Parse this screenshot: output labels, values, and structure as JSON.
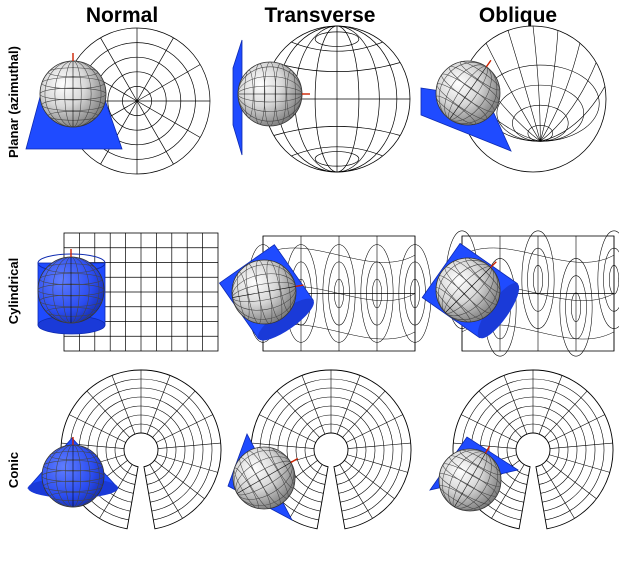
{
  "columns": [
    {
      "label": "Normal"
    },
    {
      "label": "Transverse"
    },
    {
      "label": "Oblique"
    }
  ],
  "rows": [
    {
      "label": "Planar (azimuthal)"
    },
    {
      "label": "Cylindrical"
    },
    {
      "label": "Conic"
    }
  ],
  "colors": {
    "plane_blue": "#1f4bff",
    "grid_line": "#000000",
    "globe_light": "#f4f4f4",
    "globe_dark": "#7a7a7a",
    "axis_red": "#cc2200"
  },
  "cells": [
    {
      "name": "normal-planar",
      "projection": "planar",
      "aspect": "normal"
    },
    {
      "name": "transverse-planar",
      "projection": "planar",
      "aspect": "transverse"
    },
    {
      "name": "oblique-planar",
      "projection": "planar",
      "aspect": "oblique"
    },
    {
      "name": "normal-cylindrical",
      "projection": "cylindrical",
      "aspect": "normal"
    },
    {
      "name": "transverse-cylindrical",
      "projection": "cylindrical",
      "aspect": "transverse"
    },
    {
      "name": "oblique-cylindrical",
      "projection": "cylindrical",
      "aspect": "oblique"
    },
    {
      "name": "normal-conic",
      "projection": "conic",
      "aspect": "normal"
    },
    {
      "name": "transverse-conic",
      "projection": "conic",
      "aspect": "transverse"
    },
    {
      "name": "oblique-conic",
      "projection": "conic",
      "aspect": "oblique"
    }
  ]
}
